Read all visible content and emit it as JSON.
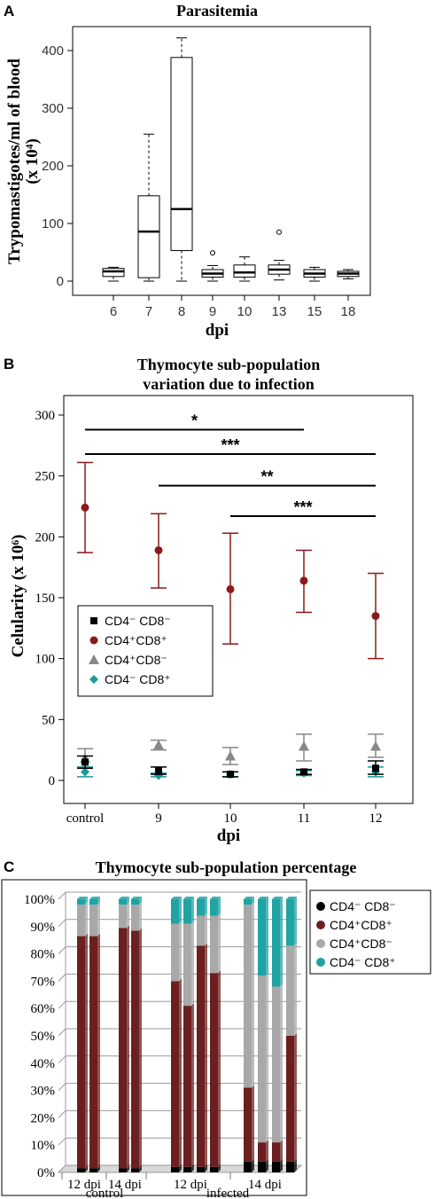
{
  "chart_data": [
    {
      "panel": "A",
      "type": "boxplot",
      "title": "Parasitemia",
      "xlabel": "dpi",
      "ylabel_line1": "Trypomastigotes/ml of blood",
      "ylabel_line2": "(x 10⁴)",
      "ylim": [
        0,
        430
      ],
      "yticks": [
        "0",
        "100",
        "200",
        "300",
        "400"
      ],
      "categories": [
        "6",
        "7",
        "8",
        "9",
        "10",
        "13",
        "15",
        "18"
      ],
      "boxes": [
        {
          "min": 0,
          "q1": 8,
          "median": 17,
          "q3": 22,
          "max": 24,
          "outliers": []
        },
        {
          "min": 0,
          "q1": 6,
          "median": 86,
          "q3": 148,
          "max": 255,
          "outliers": []
        },
        {
          "min": 0,
          "q1": 53,
          "median": 125,
          "q3": 388,
          "max": 422,
          "outliers": []
        },
        {
          "min": 0,
          "q1": 7,
          "median": 13,
          "q3": 20,
          "max": 27,
          "outliers": [
            49
          ]
        },
        {
          "min": 0,
          "q1": 7,
          "median": 15,
          "q3": 28,
          "max": 42,
          "outliers": []
        },
        {
          "min": 2,
          "q1": 12,
          "median": 20,
          "q3": 28,
          "max": 36,
          "outliers": [
            85
          ]
        },
        {
          "min": 0,
          "q1": 7,
          "median": 13,
          "q3": 20,
          "max": 24,
          "outliers": []
        },
        {
          "min": 4,
          "q1": 8,
          "median": 13,
          "q3": 17,
          "max": 20,
          "outliers": []
        }
      ]
    },
    {
      "panel": "B",
      "type": "scatter",
      "title_line1": "Thymocyte sub-population",
      "title_line2": "variation due to infection",
      "xlabel": "dpi",
      "ylabel": "Celularity (x 10⁶)",
      "ylim": [
        0,
        300
      ],
      "yticks": [
        "0",
        "50",
        "100",
        "150",
        "200",
        "250",
        "300"
      ],
      "categories": [
        "control",
        "9",
        "10",
        "11",
        "12"
      ],
      "legend": [
        "CD4⁻ CD8⁻",
        "CD4⁺CD8⁺",
        "CD4⁺CD8⁻",
        "CD4⁻ CD8⁺"
      ],
      "series": [
        {
          "name": "CD4⁻ CD8⁻",
          "color": "#000000",
          "marker": "square",
          "values": [
            15,
            8,
            5,
            7,
            10
          ],
          "err_low": [
            10,
            5,
            3,
            5,
            5
          ],
          "err_high": [
            20,
            11,
            7,
            9,
            16
          ]
        },
        {
          "name": "CD4⁺CD8⁺",
          "color": "#8b1a1a",
          "marker": "circle",
          "values": [
            224,
            189,
            157,
            164,
            135
          ],
          "err_low": [
            187,
            158,
            112,
            138,
            100
          ],
          "err_high": [
            261,
            219,
            203,
            189,
            170
          ]
        },
        {
          "name": "CD4⁺CD8⁻",
          "color": "#888888",
          "marker": "triangle",
          "values": [
            18,
            29,
            20,
            28,
            28
          ],
          "err_low": [
            10,
            25,
            13,
            16,
            19
          ],
          "err_high": [
            26,
            33,
            27,
            38,
            38
          ]
        },
        {
          "name": "CD4⁻ CD8⁺",
          "color": "#1a9a9a",
          "marker": "diamond",
          "values": [
            7,
            4,
            5,
            6,
            7
          ],
          "err_low": [
            3,
            3,
            3,
            4,
            3
          ],
          "err_high": [
            11,
            6,
            7,
            8,
            11
          ]
        }
      ],
      "significance": [
        {
          "from": "control",
          "to": "11",
          "y": 288,
          "label": "*"
        },
        {
          "from": "control",
          "to": "12",
          "y": 268,
          "label": "***"
        },
        {
          "from": "9",
          "to": "12",
          "y": 242,
          "label": "**"
        },
        {
          "from": "10",
          "to": "12",
          "y": 217,
          "label": "***"
        }
      ]
    },
    {
      "panel": "C",
      "type": "stacked_bar",
      "title": "Thymocyte sub-population percentage",
      "ylim": [
        0,
        100
      ],
      "yticks": [
        "0%",
        "10%",
        "20%",
        "30%",
        "40%",
        "50%",
        "60%",
        "70%",
        "80%",
        "90%",
        "100%"
      ],
      "groups": [
        {
          "label": "12 dpi",
          "n": 2
        },
        {
          "label": "14 dpi",
          "n": 2
        },
        {
          "label": "12 dpi",
          "n": 4
        },
        {
          "label": "14 dpi",
          "n": 4
        }
      ],
      "conditions": [
        "control",
        "infected"
      ],
      "legend": [
        "CD4⁻ CD8⁻",
        "CD4⁺CD8⁺",
        "CD4⁺CD8⁻",
        "CD4⁻ CD8⁺"
      ],
      "colors": [
        "#000000",
        "#6b1f1f",
        "#a8a8a8",
        "#1fa3a3"
      ],
      "bars": [
        [
          1.5,
          85,
          11.5,
          2
        ],
        [
          1.5,
          85,
          11.5,
          2
        ],
        [
          1.5,
          88,
          8.5,
          2
        ],
        [
          1.5,
          87,
          9.5,
          2
        ],
        [
          2,
          68,
          21,
          9
        ],
        [
          2,
          59,
          30,
          9
        ],
        [
          2,
          81,
          11,
          6
        ],
        [
          2,
          71,
          21,
          6
        ],
        [
          4,
          27,
          67,
          2
        ],
        [
          4,
          7,
          61,
          28
        ],
        [
          4,
          7,
          57,
          32
        ],
        [
          4,
          46,
          33,
          17
        ]
      ]
    }
  ],
  "labels": {
    "panel_a": "A",
    "panel_b": "B",
    "panel_c": "C"
  }
}
